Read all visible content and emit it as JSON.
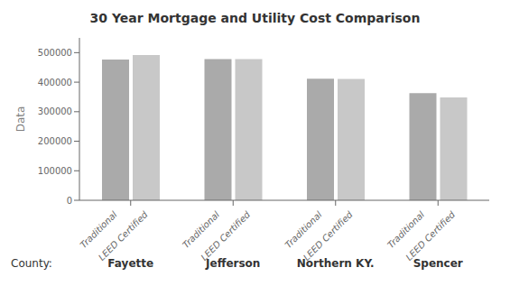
{
  "chart_data": {
    "type": "bar",
    "title": "30 Year Mortgage and Utility Cost Comparison",
    "ylabel": "Data",
    "xlabel": "County:",
    "categories": [
      "Fayette",
      "Jefferson",
      "Northern KY.",
      "Spencer"
    ],
    "series": [
      {
        "name": "Traditional",
        "color": "#aaaaaa",
        "values": [
          477000,
          478000,
          412000,
          363000
        ]
      },
      {
        "name": "LEED Certified",
        "color": "#c8c8c8",
        "values": [
          492000,
          478000,
          411000,
          348000
        ]
      }
    ],
    "ylim": [
      0,
      550000
    ],
    "yticks": [
      0,
      100000,
      200000,
      300000,
      400000,
      500000
    ]
  }
}
